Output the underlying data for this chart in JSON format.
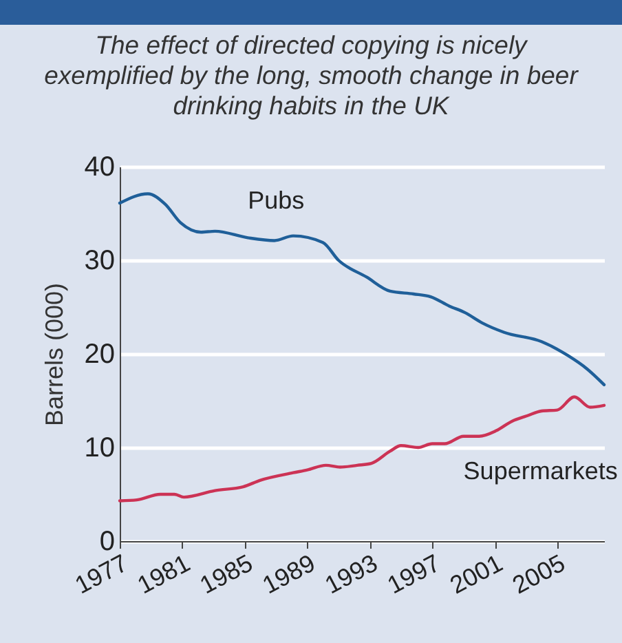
{
  "chart_data": {
    "type": "line",
    "title": "The effect of directed copying is nicely exemplified by the long, smooth change in beer drinking habits in the UK",
    "ylabel": "Barrels (000)",
    "xlim": [
      1977,
      2008
    ],
    "xticks": [
      1977,
      1981,
      1985,
      1989,
      1993,
      1997,
      2001,
      2005
    ],
    "ylim": [
      0,
      40
    ],
    "yticks": [
      0,
      10,
      20,
      30,
      40
    ],
    "grid": "y",
    "legend": false,
    "series": [
      {
        "name": "Pubs",
        "color": "#1f5f99",
        "x": [
          1977,
          1978.8,
          1979.9,
          1980.9,
          1982.2,
          1983.1,
          1985.2,
          1986.9,
          1988.1,
          1990,
          1991,
          1992.8,
          1994.3,
          1995.8,
          1996.9,
          1998.1,
          1999.1,
          2000.2,
          2001.6,
          2004,
          2005.7,
          2006.9,
          2008
        ],
        "values": [
          36.1,
          37.1,
          36.0,
          34.0,
          33.0,
          33.1,
          32.4,
          32.1,
          32.6,
          31.9,
          30.0,
          28.2,
          26.7,
          26.4,
          26.1,
          25.1,
          24.4,
          23.3,
          22.3,
          21.3,
          19.8,
          18.4,
          16.7
        ]
      },
      {
        "name": "Supermarkets",
        "color": "#cc3355",
        "x": [
          1977,
          1978.1,
          1979.6,
          1980.5,
          1981.1,
          1983.1,
          1984.9,
          1986,
          1988.1,
          1989,
          1990.2,
          1991.1,
          1992.2,
          1993.1,
          1994.3,
          1995,
          1996.1,
          1997,
          1997.8,
          1999,
          2000,
          2001.1,
          2002.1,
          2003.1,
          2004,
          2005,
          2006.1,
          2007.1,
          2008
        ],
        "values": [
          4.3,
          4.4,
          5.0,
          5.0,
          4.7,
          5.4,
          5.8,
          6.5,
          7.3,
          7.6,
          8.1,
          7.9,
          8.1,
          8.3,
          9.6,
          10.2,
          10.0,
          10.4,
          10.4,
          11.2,
          11.2,
          11.8,
          12.8,
          13.4,
          13.9,
          14.0,
          15.4,
          14.3,
          14.5
        ]
      }
    ]
  }
}
